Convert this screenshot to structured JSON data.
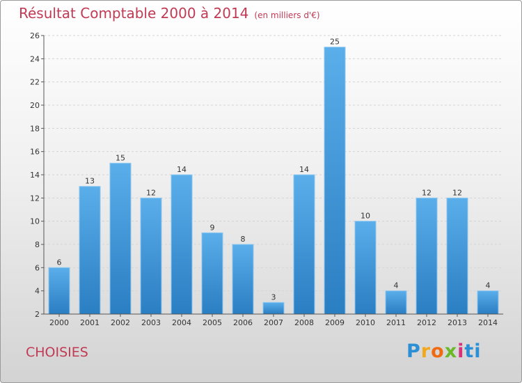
{
  "chart_data": {
    "type": "bar",
    "title": "Résultat Comptable 2000 à 2014",
    "subtitle": "(en milliers d'€)",
    "categories": [
      "2000",
      "2001",
      "2002",
      "2003",
      "2004",
      "2005",
      "2006",
      "2007",
      "2008",
      "2009",
      "2010",
      "2011",
      "2012",
      "2013",
      "2014"
    ],
    "values": [
      6,
      13,
      15,
      12,
      14,
      9,
      8,
      3,
      14,
      25,
      10,
      4,
      12,
      12,
      4
    ],
    "ylim": [
      2,
      26
    ],
    "yticks": [
      2,
      4,
      6,
      8,
      10,
      12,
      14,
      16,
      18,
      20,
      22,
      24,
      26
    ],
    "xlabel": "",
    "ylabel": "",
    "grid": true,
    "bar_color": "#4a9fe0"
  },
  "footer": {
    "city": "CHOISIES",
    "logo_letters": [
      "P",
      "r",
      "o",
      "x",
      "i",
      "ti"
    ]
  }
}
